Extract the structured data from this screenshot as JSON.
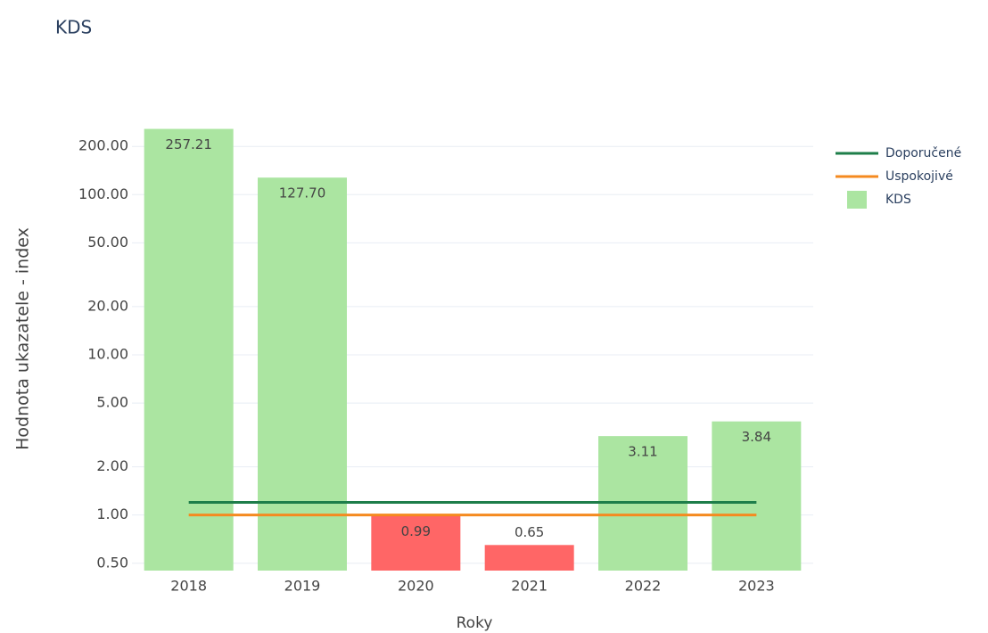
{
  "chart_data": {
    "type": "bar",
    "title": "KDS",
    "x_label": "Roky",
    "y_label": "Hodnota ukazatele - index",
    "categories": [
      "2018",
      "2019",
      "2020",
      "2021",
      "2022",
      "2023"
    ],
    "log_y": true,
    "grid": true,
    "legend": "top-right",
    "ylim": [
      0.45,
      310
    ],
    "yticks": [
      {
        "value": 0.5,
        "label": "0.50"
      },
      {
        "value": 1,
        "label": "1.00"
      },
      {
        "value": 2,
        "label": "2.00"
      },
      {
        "value": 5,
        "label": "5.00"
      },
      {
        "value": 10,
        "label": "10.00"
      },
      {
        "value": 20,
        "label": "20.00"
      },
      {
        "value": 50,
        "label": "50.00"
      },
      {
        "value": 100,
        "label": "100.00"
      },
      {
        "value": 200,
        "label": "200.00"
      }
    ],
    "series": [
      {
        "name": "Doporučené",
        "type": "line",
        "color": "#1e7e4a",
        "values": [
          1.2,
          1.2,
          1.2,
          1.2,
          1.2,
          1.2
        ]
      },
      {
        "name": "Uspokojivé",
        "type": "line",
        "color": "#f58a1f",
        "values": [
          1,
          1,
          1,
          1,
          1,
          1
        ]
      },
      {
        "name": "KDS",
        "type": "bar",
        "color": "#abe5a1",
        "colors": [
          "#abe5a1",
          "#abe5a1",
          "#ff6666",
          "#ff6666",
          "#abe5a1",
          "#abe5a1"
        ],
        "values": [
          257.21,
          127.7,
          0.99,
          0.65,
          3.11,
          3.84
        ],
        "value_labels": [
          "257.21",
          "127.70",
          "0.99",
          "0.65",
          "3.11",
          "3.84"
        ]
      }
    ]
  }
}
